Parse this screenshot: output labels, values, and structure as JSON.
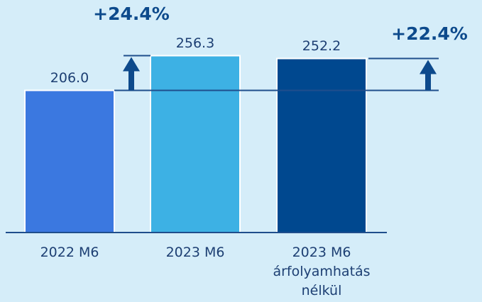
{
  "chart_data": {
    "type": "bar",
    "categories": [
      "2022 M6",
      "2023 M6",
      "2023 M6\nárfolyamhatás\nnélkül"
    ],
    "values": [
      206.0,
      256.3,
      252.2
    ],
    "value_labels": [
      "206.0",
      "256.3",
      "252.2"
    ],
    "colors": [
      "#3b78e0",
      "#3db1e4",
      "#00488f"
    ],
    "ylim": [
      0,
      300
    ],
    "annotations": [
      "+24.4%",
      "+22.4%"
    ]
  }
}
